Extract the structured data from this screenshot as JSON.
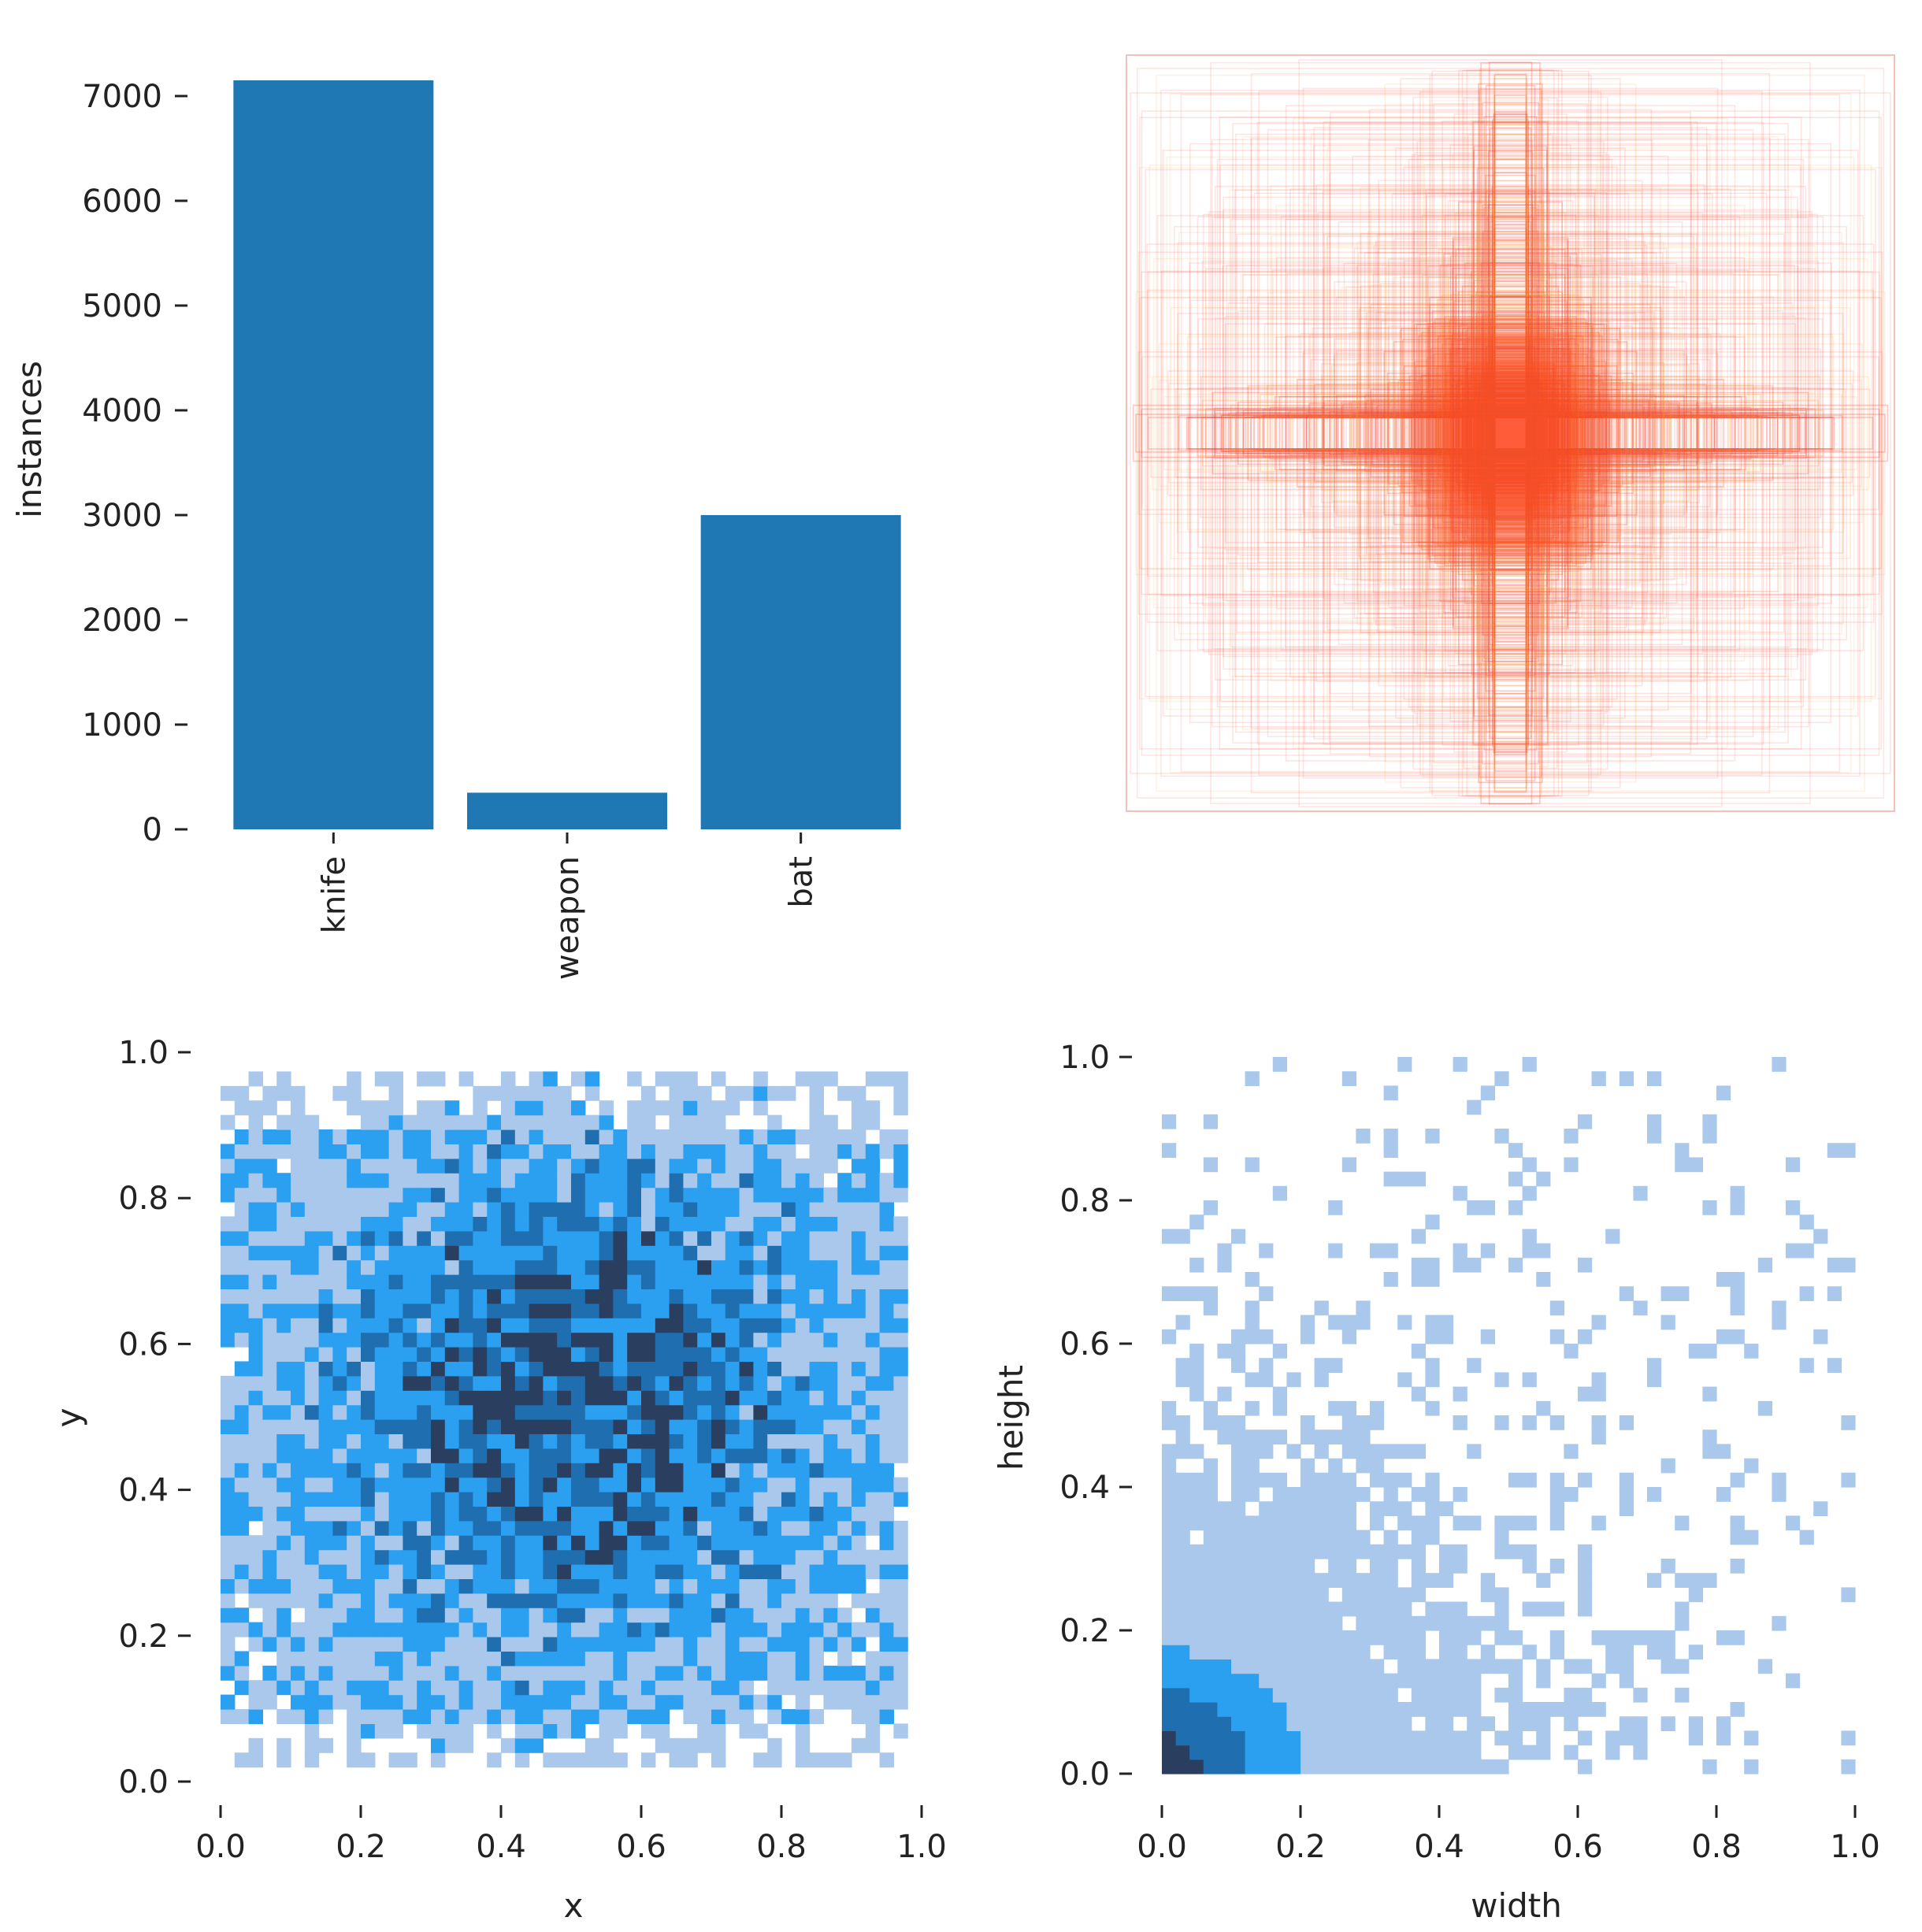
{
  "chart_data": [
    {
      "id": "class-counts",
      "type": "bar",
      "categories": [
        "knife",
        "weapon",
        "bat"
      ],
      "values": [
        7150,
        350,
        3000
      ],
      "ylabel": "instances",
      "xlabel": "",
      "ylim": [
        0,
        7200
      ],
      "yticks": [
        0,
        1000,
        2000,
        3000,
        4000,
        5000,
        6000,
        7000
      ],
      "ytick_labels": [
        "0",
        "1000",
        "2000",
        "3000",
        "4000",
        "5000",
        "6000",
        "7000"
      ],
      "color": "#1f77b4",
      "grid": false
    },
    {
      "id": "box-overlay",
      "type": "scatter",
      "description_type": "overlaid bounding boxes centered at image center",
      "color": "#ff3b1f",
      "grid": false
    },
    {
      "id": "xy-histogram",
      "type": "heatmap",
      "xlabel": "x",
      "ylabel": "y",
      "xlim": [
        0,
        1
      ],
      "ylim": [
        0,
        1
      ],
      "xticks": [
        "0.0",
        "0.2",
        "0.4",
        "0.6",
        "0.8",
        "1.0"
      ],
      "yticks": [
        "0.0",
        "0.2",
        "0.4",
        "0.6",
        "0.8",
        "1.0"
      ],
      "bins": 50,
      "colors": [
        "#a9c8ec",
        "#2b9ff0",
        "#1f6fb0",
        "#2a3f5f"
      ],
      "grid": false
    },
    {
      "id": "wh-histogram",
      "type": "heatmap",
      "xlabel": "width",
      "ylabel": "height",
      "xlim": [
        0,
        1
      ],
      "ylim": [
        0,
        1
      ],
      "xticks": [
        "0.0",
        "0.2",
        "0.4",
        "0.6",
        "0.8",
        "1.0"
      ],
      "yticks": [
        "0.0",
        "0.2",
        "0.4",
        "0.6",
        "0.8",
        "1.0"
      ],
      "bins": 50,
      "colors": [
        "#a9c8ec",
        "#2b9ff0",
        "#1f6fb0",
        "#2a3f5f"
      ],
      "grid": false
    }
  ]
}
